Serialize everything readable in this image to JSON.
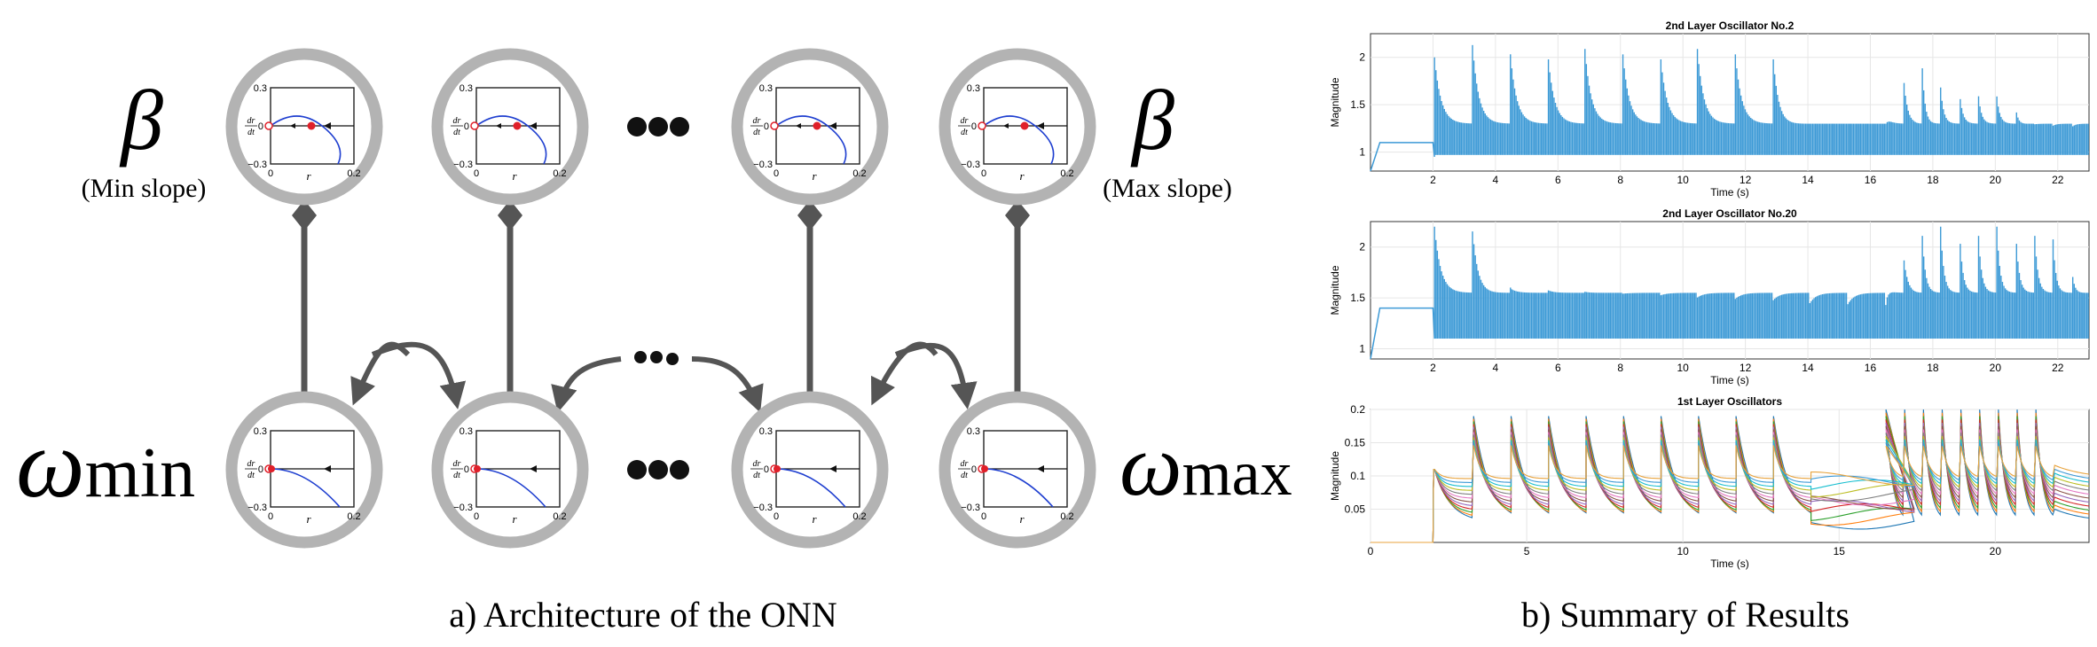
{
  "left_panel": {
    "caption": "a) Architecture of the ONN",
    "beta_symbol": "β",
    "beta_min_label": "(Min slope)",
    "beta_max_label": "(Max slope)",
    "omega_symbol": "ω",
    "omega_min_sub": "min",
    "omega_max_sub": "max",
    "mini_plot": {
      "y_top_tick": "0.3",
      "y_bottom_tick": "−0.3",
      "y_zero_tick": "0",
      "x_left_tick": "0",
      "x_right_tick": "0.2",
      "x_label": "r",
      "y_label_num": "dr",
      "y_label_den": "dt"
    },
    "colors": {
      "ring": "#b3b3b3",
      "edge": "#555555",
      "curve": "#1f3fd0",
      "fixed_point": "#e0202a"
    }
  },
  "right_panel": {
    "caption": "b) Summary of Results",
    "charts": [
      {
        "title": "2nd Layer Oscillator No.2",
        "xlabel": "Time (s)",
        "ylabel": "Magnitude",
        "xticks": [
          "2",
          "4",
          "6",
          "8",
          "10",
          "12",
          "14",
          "16",
          "18",
          "20",
          "22"
        ],
        "yticks": [
          "1",
          "1.5",
          "2"
        ]
      },
      {
        "title": "2nd Layer Oscillator No.20",
        "xlabel": "Time (s)",
        "ylabel": "Magnitude",
        "xticks": [
          "2",
          "4",
          "6",
          "8",
          "10",
          "12",
          "14",
          "16",
          "18",
          "20",
          "22"
        ],
        "yticks": [
          "1",
          "1.5",
          "2"
        ]
      },
      {
        "title": "1st Layer Oscillators",
        "xlabel": "Time (s)",
        "ylabel": "Magnitude",
        "xticks": [
          "0",
          "5",
          "10",
          "15",
          "20"
        ],
        "yticks": [
          "0.05",
          "0.1",
          "0.15",
          "0.2"
        ]
      }
    ],
    "colors": {
      "signal": "#3d9ad6",
      "axis": "#333333",
      "grid": "#e6e6e6"
    }
  },
  "chart_data": [
    {
      "type": "line",
      "title": "2nd Layer Oscillator No.2",
      "xlabel": "Time (s)",
      "ylabel": "Magnitude",
      "xlim": [
        0,
        23
      ],
      "ylim": [
        0.8,
        2.25
      ],
      "grid": true,
      "series": [
        {
          "x": [
            0,
            0.3,
            2,
            2.05,
            3.3,
            4.5,
            5.7,
            6.9,
            8.1,
            9.3,
            10.5,
            11.7,
            12.9,
            14,
            16.5,
            17.4,
            18,
            18.7,
            19.3,
            19.9,
            20.5,
            21,
            23
          ],
          "values": [
            0.8,
            1.1,
            1.1,
            2.0,
            2.2,
            2.15,
            2.15,
            2.15,
            2.15,
            2.15,
            2.15,
            2.15,
            2.15,
            1.3,
            1.3,
            2.2,
            1.7,
            1.65,
            1.65,
            1.6,
            1.55,
            1.3,
            1.25
          ]
        }
      ]
    },
    {
      "type": "line",
      "title": "2nd Layer Oscillator No.20",
      "xlabel": "Time (s)",
      "ylabel": "Magnitude",
      "xlim": [
        0,
        23
      ],
      "ylim": [
        0.9,
        2.25
      ],
      "grid": true,
      "series": [
        {
          "x": [
            0,
            0.3,
            2,
            2.05,
            3.3,
            4.5,
            16.5,
            17.3,
            21.6,
            23
          ],
          "values": [
            0.9,
            1.4,
            1.4,
            2.2,
            2.2,
            1.6,
            1.4,
            2.2,
            2.2,
            1.5
          ]
        }
      ]
    },
    {
      "type": "line",
      "title": "1st Layer Oscillators",
      "xlabel": "Time (s)",
      "ylabel": "Magnitude",
      "xlim": [
        0,
        23
      ],
      "ylim": [
        0,
        0.2
      ],
      "grid": true,
      "series": [
        {
          "x": [
            0,
            2,
            2.05,
            3.3,
            4.5,
            5.7,
            6.9,
            8.1,
            9.3,
            10.5,
            11.7,
            12.9,
            14,
            16.5,
            17.2,
            21.4,
            23
          ],
          "values": [
            0.0,
            0.0,
            0.11,
            0.19,
            0.185,
            0.18,
            0.18,
            0.18,
            0.18,
            0.18,
            0.18,
            0.18,
            0.05,
            0.02,
            0.2,
            0.2,
            0.06
          ]
        }
      ]
    }
  ]
}
